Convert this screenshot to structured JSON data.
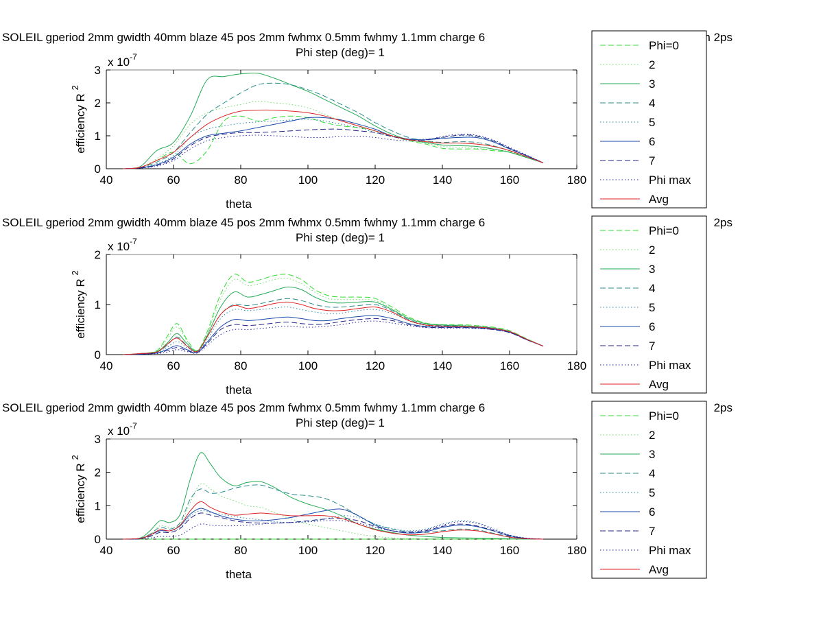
{
  "figure": {
    "background": "#ffffff"
  },
  "series_styles": [
    {
      "name": "Phi=0",
      "color": "#33dd33",
      "dash": "dashed"
    },
    {
      "name": "2",
      "color": "#66dd66",
      "dash": "dotted"
    },
    {
      "name": "3",
      "color": "#22aa55",
      "dash": "solid"
    },
    {
      "name": "4",
      "color": "#2a8a8a",
      "dash": "dashed"
    },
    {
      "name": "5",
      "color": "#2288aa",
      "dash": "dotted"
    },
    {
      "name": "6",
      "color": "#1a4aaa",
      "dash": "solid"
    },
    {
      "name": "7",
      "color": "#222288",
      "dash": "dashed"
    },
    {
      "name": "Phi max",
      "color": "#2222aa",
      "dash": "dotted"
    },
    {
      "name": "Avg",
      "color": "#dd2222",
      "dash": "solid"
    }
  ],
  "chart_data": [
    {
      "type": "line",
      "title": "SOLEIL gperiod 2mm gwidth 40mm blaze 45 pos 2mm fwhmx 0.5mm fwhmy 1.1mm charge 6",
      "title_tail": "h 2ps",
      "subtitle": "Phi step (deg)= 1",
      "xlabel": "theta",
      "ylabel": "efficiency R",
      "ylabel_exp": "2",
      "y_multiplier": "x 10",
      "y_multiplier_exp": "-7",
      "xlim": [
        40,
        180
      ],
      "ylim": [
        0,
        3
      ],
      "xticks": [
        40,
        60,
        80,
        100,
        120,
        140,
        160,
        180
      ],
      "yticks": [
        0,
        1,
        2,
        3
      ],
      "grid": false,
      "legend_placement": "right",
      "x": [
        45,
        50,
        55,
        60,
        65,
        70,
        75,
        80,
        85,
        90,
        95,
        100,
        105,
        110,
        115,
        120,
        125,
        130,
        135,
        140,
        145,
        150,
        155,
        160,
        165,
        170
      ],
      "series": [
        {
          "name": "Phi=0",
          "values": [
            0,
            0.03,
            0.25,
            0.5,
            0.15,
            0.55,
            1.45,
            1.6,
            1.45,
            1.55,
            1.6,
            1.55,
            1.4,
            1.3,
            1.25,
            1.15,
            1.0,
            0.85,
            0.75,
            0.62,
            0.6,
            0.6,
            0.55,
            0.5,
            0.35,
            0.18
          ]
        },
        {
          "name": "2",
          "values": [
            0,
            0.04,
            0.3,
            0.7,
            1.35,
            1.7,
            1.85,
            1.95,
            2.05,
            2.0,
            1.95,
            1.85,
            1.65,
            1.45,
            1.3,
            1.15,
            1.0,
            0.88,
            0.78,
            0.68,
            0.65,
            0.62,
            0.58,
            0.52,
            0.36,
            0.18
          ]
        },
        {
          "name": "3",
          "values": [
            0,
            0.06,
            0.55,
            0.8,
            1.6,
            2.7,
            2.8,
            2.88,
            2.9,
            2.75,
            2.55,
            2.35,
            2.1,
            1.85,
            1.6,
            1.3,
            1.05,
            0.88,
            0.8,
            0.72,
            0.7,
            0.68,
            0.6,
            0.5,
            0.34,
            0.18
          ]
        },
        {
          "name": "4",
          "values": [
            0,
            0.04,
            0.2,
            0.5,
            1.1,
            1.65,
            2.0,
            2.3,
            2.55,
            2.6,
            2.55,
            2.4,
            2.2,
            1.95,
            1.7,
            1.4,
            1.15,
            0.95,
            0.85,
            0.8,
            0.82,
            0.8,
            0.7,
            0.55,
            0.37,
            0.18
          ]
        },
        {
          "name": "5",
          "values": [
            0,
            0.03,
            0.15,
            0.4,
            0.95,
            1.2,
            1.3,
            1.38,
            1.42,
            1.45,
            1.48,
            1.5,
            1.45,
            1.35,
            1.25,
            1.1,
            0.98,
            0.9,
            0.9,
            0.95,
            1.0,
            0.98,
            0.85,
            0.62,
            0.4,
            0.18
          ]
        },
        {
          "name": "6",
          "values": [
            0,
            0.03,
            0.12,
            0.35,
            0.75,
            1.0,
            1.08,
            1.15,
            1.25,
            1.35,
            1.45,
            1.55,
            1.55,
            1.48,
            1.35,
            1.2,
            1.0,
            0.9,
            0.88,
            0.92,
            0.95,
            0.95,
            0.82,
            0.6,
            0.4,
            0.18
          ]
        },
        {
          "name": "7",
          "values": [
            0,
            0.02,
            0.1,
            0.3,
            0.7,
            0.95,
            1.05,
            1.1,
            1.1,
            1.12,
            1.15,
            1.18,
            1.2,
            1.2,
            1.15,
            1.1,
            0.98,
            0.88,
            0.88,
            0.95,
            1.02,
            1.0,
            0.85,
            0.62,
            0.4,
            0.18
          ]
        },
        {
          "name": "Phi max",
          "values": [
            0,
            0.02,
            0.08,
            0.25,
            0.6,
            0.85,
            0.95,
            1.0,
            1.02,
            1.0,
            0.98,
            0.95,
            0.95,
            0.98,
            0.98,
            0.95,
            0.88,
            0.85,
            0.88,
            0.98,
            1.05,
            1.02,
            0.88,
            0.65,
            0.42,
            0.18
          ]
        },
        {
          "name": "Avg",
          "values": [
            0,
            0.04,
            0.25,
            0.5,
            0.95,
            1.35,
            1.6,
            1.75,
            1.78,
            1.78,
            1.75,
            1.7,
            1.6,
            1.45,
            1.3,
            1.15,
            1.0,
            0.88,
            0.82,
            0.78,
            0.78,
            0.75,
            0.68,
            0.55,
            0.37,
            0.18
          ]
        }
      ]
    },
    {
      "type": "line",
      "title": "SOLEIL gperiod 2mm gwidth 40mm blaze 45 pos 2mm fwhmx 0.5mm fwhmy 1.1mm charge 6",
      "title_tail": "2ps",
      "subtitle": "Phi step (deg)= 1",
      "xlabel": "theta",
      "ylabel": "efficiency R",
      "ylabel_exp": "2",
      "y_multiplier": "x 10",
      "y_multiplier_exp": "-7",
      "xlim": [
        40,
        180
      ],
      "ylim": [
        0,
        2
      ],
      "xticks": [
        40,
        60,
        80,
        100,
        120,
        140,
        160,
        180
      ],
      "yticks": [
        0,
        1,
        2
      ],
      "grid": false,
      "legend_placement": "right",
      "x": [
        45,
        50,
        55,
        58,
        61,
        64,
        67,
        70,
        74,
        78,
        82,
        86,
        90,
        94,
        98,
        102,
        106,
        110,
        115,
        120,
        125,
        130,
        135,
        140,
        145,
        150,
        155,
        160,
        165,
        170
      ],
      "series": [
        {
          "name": "Phi=0",
          "values": [
            0,
            0.02,
            0.08,
            0.35,
            0.62,
            0.3,
            0.08,
            0.45,
            1.2,
            1.6,
            1.45,
            1.5,
            1.58,
            1.6,
            1.5,
            1.3,
            1.18,
            1.15,
            1.15,
            1.12,
            0.95,
            0.75,
            0.63,
            0.6,
            0.6,
            0.58,
            0.55,
            0.48,
            0.32,
            0.17
          ]
        },
        {
          "name": "2",
          "values": [
            0,
            0.02,
            0.07,
            0.3,
            0.55,
            0.28,
            0.08,
            0.42,
            1.1,
            1.5,
            1.38,
            1.42,
            1.5,
            1.52,
            1.42,
            1.25,
            1.12,
            1.1,
            1.1,
            1.08,
            0.92,
            0.73,
            0.62,
            0.6,
            0.59,
            0.57,
            0.54,
            0.47,
            0.32,
            0.17
          ]
        },
        {
          "name": "3",
          "values": [
            0,
            0.02,
            0.06,
            0.22,
            0.42,
            0.22,
            0.07,
            0.38,
            0.95,
            1.25,
            1.15,
            1.2,
            1.28,
            1.35,
            1.3,
            1.15,
            1.05,
            1.03,
            1.05,
            1.05,
            0.9,
            0.72,
            0.62,
            0.59,
            0.58,
            0.56,
            0.53,
            0.46,
            0.31,
            0.17
          ]
        },
        {
          "name": "4",
          "values": [
            0,
            0.01,
            0.05,
            0.18,
            0.35,
            0.18,
            0.06,
            0.35,
            0.8,
            1.0,
            0.98,
            1.02,
            1.08,
            1.12,
            1.08,
            1.0,
            0.95,
            0.95,
            0.98,
            1.0,
            0.88,
            0.7,
            0.6,
            0.58,
            0.57,
            0.56,
            0.53,
            0.46,
            0.31,
            0.17
          ]
        },
        {
          "name": "5",
          "values": [
            0,
            0.01,
            0.04,
            0.14,
            0.26,
            0.14,
            0.05,
            0.3,
            0.72,
            0.9,
            0.88,
            0.9,
            0.93,
            0.95,
            0.9,
            0.85,
            0.82,
            0.83,
            0.88,
            0.9,
            0.82,
            0.68,
            0.58,
            0.56,
            0.55,
            0.55,
            0.52,
            0.45,
            0.31,
            0.17
          ]
        },
        {
          "name": "6",
          "values": [
            0,
            0.01,
            0.03,
            0.1,
            0.18,
            0.1,
            0.04,
            0.25,
            0.55,
            0.7,
            0.68,
            0.7,
            0.73,
            0.75,
            0.72,
            0.68,
            0.68,
            0.72,
            0.76,
            0.78,
            0.72,
            0.62,
            0.56,
            0.55,
            0.55,
            0.54,
            0.51,
            0.45,
            0.3,
            0.17
          ]
        },
        {
          "name": "7",
          "values": [
            0,
            0.01,
            0.03,
            0.08,
            0.14,
            0.08,
            0.04,
            0.22,
            0.5,
            0.6,
            0.58,
            0.6,
            0.63,
            0.65,
            0.62,
            0.6,
            0.62,
            0.66,
            0.7,
            0.72,
            0.68,
            0.6,
            0.55,
            0.54,
            0.54,
            0.53,
            0.5,
            0.44,
            0.3,
            0.17
          ]
        },
        {
          "name": "Phi max",
          "values": [
            0,
            0.01,
            0.02,
            0.05,
            0.1,
            0.06,
            0.03,
            0.18,
            0.4,
            0.5,
            0.5,
            0.52,
            0.55,
            0.57,
            0.55,
            0.55,
            0.57,
            0.6,
            0.65,
            0.67,
            0.63,
            0.58,
            0.54,
            0.53,
            0.53,
            0.52,
            0.5,
            0.44,
            0.3,
            0.17
          ]
        },
        {
          "name": "Avg",
          "values": [
            0,
            0.02,
            0.05,
            0.2,
            0.33,
            0.17,
            0.06,
            0.35,
            0.8,
            0.98,
            0.92,
            0.96,
            1.02,
            1.05,
            1.0,
            0.92,
            0.88,
            0.88,
            0.92,
            0.95,
            0.85,
            0.68,
            0.59,
            0.57,
            0.56,
            0.55,
            0.52,
            0.46,
            0.31,
            0.17
          ]
        }
      ]
    },
    {
      "type": "line",
      "title": "SOLEIL gperiod 2mm gwidth 40mm blaze 45 pos 2mm fwhmx 0.5mm fwhmy 1.1mm charge 6",
      "title_tail": "2ps",
      "subtitle": "Phi step (deg)= 1",
      "xlabel": "theta",
      "ylabel": "efficiency R",
      "ylabel_exp": "2",
      "y_multiplier": "x 10",
      "y_multiplier_exp": "-7",
      "xlim": [
        40,
        180
      ],
      "ylim": [
        0,
        3
      ],
      "xticks": [
        40,
        60,
        80,
        100,
        120,
        140,
        160,
        180
      ],
      "yticks": [
        0,
        1,
        2,
        3
      ],
      "grid": false,
      "legend_placement": "right",
      "x": [
        45,
        50,
        53,
        56,
        59,
        62,
        65,
        68,
        71,
        74,
        78,
        82,
        86,
        90,
        95,
        100,
        105,
        110,
        115,
        120,
        125,
        130,
        135,
        140,
        145,
        150,
        155,
        160,
        165,
        170
      ],
      "series": [
        {
          "name": "Phi=0",
          "values": [
            0,
            0,
            0,
            0,
            0,
            0,
            0,
            0,
            0,
            0,
            0,
            0,
            0,
            0,
            0,
            0,
            0,
            0,
            0,
            0,
            0,
            0,
            0,
            0,
            0,
            0,
            0,
            0,
            0,
            0
          ]
        },
        {
          "name": "2",
          "values": [
            0,
            0.02,
            0.12,
            0.4,
            0.35,
            0.45,
            1.1,
            1.65,
            1.5,
            1.3,
            1.15,
            1.0,
            0.95,
            0.8,
            0.6,
            0.45,
            0.35,
            0.25,
            0.15,
            0.08,
            0.04,
            0.02,
            0.01,
            0.01,
            0.01,
            0.01,
            0.01,
            0.0,
            0.0,
            0.0
          ]
        },
        {
          "name": "3",
          "values": [
            0,
            0.03,
            0.25,
            0.55,
            0.5,
            0.75,
            1.8,
            2.58,
            2.25,
            1.85,
            1.6,
            1.7,
            1.72,
            1.55,
            1.25,
            1.05,
            0.9,
            0.7,
            0.45,
            0.3,
            0.2,
            0.12,
            0.08,
            0.05,
            0.04,
            0.03,
            0.02,
            0.01,
            0.0,
            0.0
          ]
        },
        {
          "name": "4",
          "values": [
            0,
            0.02,
            0.15,
            0.35,
            0.3,
            0.5,
            1.2,
            1.5,
            1.38,
            1.4,
            1.52,
            1.6,
            1.62,
            1.5,
            1.35,
            1.3,
            1.22,
            1.0,
            0.7,
            0.45,
            0.3,
            0.22,
            0.2,
            0.25,
            0.3,
            0.28,
            0.18,
            0.08,
            0.02,
            0.0
          ]
        },
        {
          "name": "5",
          "values": [
            0,
            0.01,
            0.1,
            0.25,
            0.25,
            0.35,
            0.7,
            0.85,
            0.8,
            0.75,
            0.68,
            0.62,
            0.58,
            0.52,
            0.5,
            0.52,
            0.6,
            0.7,
            0.65,
            0.45,
            0.32,
            0.25,
            0.3,
            0.45,
            0.55,
            0.5,
            0.32,
            0.12,
            0.03,
            0.0
          ]
        },
        {
          "name": "6",
          "values": [
            0,
            0.01,
            0.12,
            0.25,
            0.25,
            0.4,
            0.75,
            0.92,
            0.82,
            0.7,
            0.6,
            0.55,
            0.55,
            0.58,
            0.65,
            0.75,
            0.85,
            0.9,
            0.7,
            0.42,
            0.25,
            0.18,
            0.22,
            0.35,
            0.42,
            0.38,
            0.25,
            0.1,
            0.02,
            0.0
          ]
        },
        {
          "name": "7",
          "values": [
            0,
            0.01,
            0.08,
            0.2,
            0.2,
            0.32,
            0.62,
            0.78,
            0.72,
            0.65,
            0.55,
            0.5,
            0.48,
            0.48,
            0.5,
            0.55,
            0.6,
            0.62,
            0.55,
            0.38,
            0.25,
            0.2,
            0.25,
            0.38,
            0.45,
            0.4,
            0.26,
            0.1,
            0.02,
            0.0
          ]
        },
        {
          "name": "Phi max",
          "values": [
            0,
            0.0,
            0.03,
            0.08,
            0.08,
            0.12,
            0.3,
            0.45,
            0.42,
            0.4,
            0.4,
            0.42,
            0.45,
            0.48,
            0.5,
            0.52,
            0.55,
            0.55,
            0.48,
            0.35,
            0.25,
            0.22,
            0.28,
            0.42,
            0.52,
            0.48,
            0.3,
            0.12,
            0.03,
            0.0
          ]
        },
        {
          "name": "Avg",
          "values": [
            0,
            0.02,
            0.12,
            0.28,
            0.25,
            0.42,
            0.85,
            1.12,
            0.95,
            0.82,
            0.72,
            0.75,
            0.78,
            0.75,
            0.7,
            0.7,
            0.7,
            0.62,
            0.45,
            0.28,
            0.18,
            0.13,
            0.15,
            0.22,
            0.27,
            0.25,
            0.16,
            0.06,
            0.01,
            0.0
          ]
        }
      ]
    }
  ]
}
